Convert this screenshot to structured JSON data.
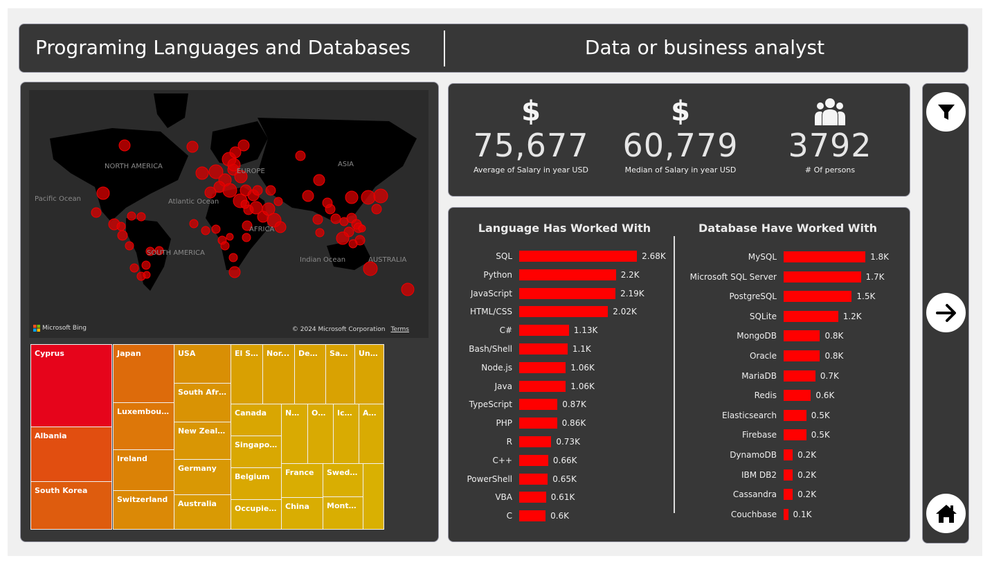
{
  "header": {
    "title": "Programing Languages and Databases",
    "subtitle": "Data or business analyst"
  },
  "map": {
    "labels": {
      "north_america": "NORTH AMERICA",
      "south_america": "SOUTH AMERICA",
      "europe": "EUROPE",
      "africa": "AFRICA",
      "asia": "ASIA",
      "australia": "AUSTRALIA",
      "pacific": "Pacific Ocean",
      "atlantic": "Atlantic Ocean",
      "indian": "Indian Ocean"
    },
    "attribution": "Microsoft Bing",
    "copyright": "© 2024 Microsoft Corporation",
    "terms": "Terms"
  },
  "treemap": {
    "items": [
      "Cyprus",
      "Albania",
      "South Korea",
      "Japan",
      "Luxembourg",
      "Ireland",
      "Switzerland",
      "USA",
      "South Africa",
      "New Zealand",
      "Germany",
      "Australia",
      "El Sal...",
      "Nor...",
      "Den...",
      "Sau...",
      "Unit...",
      "Canada",
      "Singapore",
      "Belgium",
      "Occupied ...",
      "Ne...",
      "Om...",
      "Icel...",
      "Au...",
      "France",
      "China",
      "Sweden",
      "Monte..."
    ]
  },
  "kpis": [
    {
      "icon": "dollar-icon",
      "value": "75,677",
      "label": "Average of Salary in year USD"
    },
    {
      "icon": "dollar-icon",
      "value": "60,779",
      "label": "Median of Salary in year USD"
    },
    {
      "icon": "people-icon",
      "value": "3792",
      "label": "# Of persons"
    }
  ],
  "nav": {
    "filter": "filter-icon",
    "next": "arrow-right-icon",
    "home": "home-icon"
  },
  "chart_data": [
    {
      "type": "bar",
      "orientation": "horizontal",
      "title": "Language Has Worked With",
      "categories": [
        "SQL",
        "Python",
        "JavaScript",
        "HTML/CSS",
        "C#",
        "Bash/Shell",
        "Node.js",
        "Java",
        "TypeScript",
        "PHP",
        "R",
        "C++",
        "PowerShell",
        "VBA",
        "C"
      ],
      "values": [
        2.68,
        2.2,
        2.19,
        2.02,
        1.13,
        1.1,
        1.06,
        1.06,
        0.87,
        0.86,
        0.73,
        0.66,
        0.65,
        0.61,
        0.6
      ],
      "labels": [
        "2.68K",
        "2.2K",
        "2.19K",
        "2.02K",
        "1.13K",
        "1.1K",
        "1.06K",
        "1.06K",
        "0.87K",
        "0.86K",
        "0.73K",
        "0.66K",
        "0.65K",
        "0.61K",
        "0.6K"
      ],
      "unit": "K",
      "color": "#ff0000"
    },
    {
      "type": "bar",
      "orientation": "horizontal",
      "title": "Database Have Worked With",
      "categories": [
        "MySQL",
        "Microsoft SQL Server",
        "PostgreSQL",
        "SQLite",
        "MongoDB",
        "Oracle",
        "MariaDB",
        "Redis",
        "Elasticsearch",
        "Firebase",
        "DynamoDB",
        "IBM DB2",
        "Cassandra",
        "Couchbase"
      ],
      "values": [
        1.8,
        1.7,
        1.5,
        1.2,
        0.8,
        0.8,
        0.7,
        0.6,
        0.5,
        0.5,
        0.2,
        0.2,
        0.2,
        0.1
      ],
      "labels": [
        "1.8K",
        "1.7K",
        "1.5K",
        "1.2K",
        "0.8K",
        "0.8K",
        "0.7K",
        "0.6K",
        "0.5K",
        "0.5K",
        "0.2K",
        "0.2K",
        "0.2K",
        "0.1K"
      ],
      "unit": "K",
      "color": "#ff0000"
    }
  ]
}
